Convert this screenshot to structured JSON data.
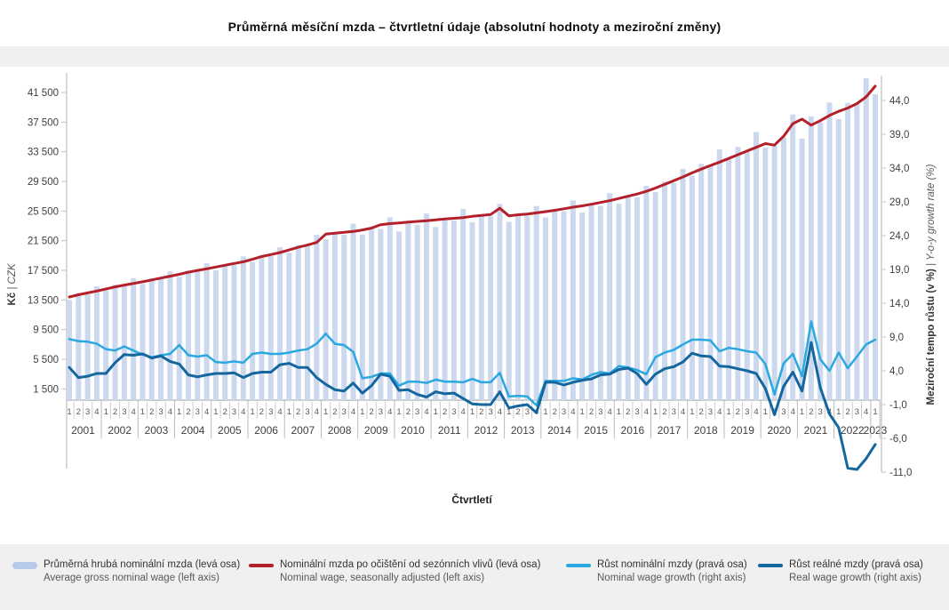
{
  "title": "Průměrná měsíční mzda – čtvrtletní údaje (absolutní hodnoty a meziroční změny)",
  "colors": {
    "bar": "#cbd8ee",
    "seasonally_adjusted_line": "#b4202a",
    "nominal_growth_line": "#29a9e0",
    "real_growth_line": "#14669f",
    "band_background": "#f0f0f0",
    "axis_line": "#b3b3b3",
    "tick_text": "#404040",
    "quarter_text": "#595959"
  },
  "chart_data": {
    "type": "bar+line",
    "title": "Průměrná měsíční mzda – čtvrtletní údaje (absolutní hodnoty a meziroční změny)",
    "x_axis": {
      "title": "Čtvrtletí",
      "years": [
        {
          "label": "2001",
          "quarters": [
            "1",
            "2",
            "3",
            "4"
          ]
        },
        {
          "label": "2002",
          "quarters": [
            "1",
            "2",
            "3",
            "4"
          ]
        },
        {
          "label": "2003",
          "quarters": [
            "1",
            "2",
            "3",
            "4"
          ]
        },
        {
          "label": "2004",
          "quarters": [
            "1",
            "2",
            "3",
            "4"
          ]
        },
        {
          "label": "2005",
          "quarters": [
            "1",
            "2",
            "3",
            "4"
          ]
        },
        {
          "label": "2006",
          "quarters": [
            "1",
            "2",
            "3",
            "4"
          ]
        },
        {
          "label": "2007",
          "quarters": [
            "1",
            "2",
            "3",
            "4"
          ]
        },
        {
          "label": "2008",
          "quarters": [
            "1",
            "2",
            "3",
            "4"
          ]
        },
        {
          "label": "2009",
          "quarters": [
            "1",
            "2",
            "3",
            "4"
          ]
        },
        {
          "label": "2010",
          "quarters": [
            "1",
            "2",
            "3",
            "4"
          ]
        },
        {
          "label": "2011",
          "quarters": [
            "1",
            "2",
            "3",
            "4"
          ]
        },
        {
          "label": "2012",
          "quarters": [
            "1",
            "2",
            "3",
            "4"
          ]
        },
        {
          "label": "2013",
          "quarters": [
            "1",
            "2",
            "3",
            "4"
          ]
        },
        {
          "label": "2014",
          "quarters": [
            "1",
            "2",
            "3",
            "4"
          ]
        },
        {
          "label": "2015",
          "quarters": [
            "1",
            "2",
            "3",
            "4"
          ]
        },
        {
          "label": "2016",
          "quarters": [
            "1",
            "2",
            "3",
            "4"
          ]
        },
        {
          "label": "2017",
          "quarters": [
            "1",
            "2",
            "3",
            "4"
          ]
        },
        {
          "label": "2018",
          "quarters": [
            "1",
            "2",
            "3",
            "4"
          ]
        },
        {
          "label": "2019",
          "quarters": [
            "1",
            "2",
            "3",
            "4"
          ]
        },
        {
          "label": "2020",
          "quarters": [
            "1",
            "2",
            "3",
            "4"
          ]
        },
        {
          "label": "2021",
          "quarters": [
            "1",
            "2",
            "3",
            "4"
          ]
        },
        {
          "label": "2022",
          "quarters": [
            "1",
            "2",
            "3",
            "4"
          ]
        },
        {
          "label": "2023",
          "quarters": [
            "1"
          ]
        }
      ]
    },
    "left_axis": {
      "title_bold": "Kč ",
      "title_italic": "| CZK",
      "min": 0,
      "max": 43500,
      "ticks": [
        {
          "v": 41500,
          "label": "41 500"
        },
        {
          "v": 37500,
          "label": "37 500"
        },
        {
          "v": 33500,
          "label": "33 500"
        },
        {
          "v": 29500,
          "label": "29 500"
        },
        {
          "v": 25500,
          "label": "25 500"
        },
        {
          "v": 21500,
          "label": "21 500"
        },
        {
          "v": 17500,
          "label": "17 500"
        },
        {
          "v": 13500,
          "label": "13 500"
        },
        {
          "v": 9500,
          "label": "9 500"
        },
        {
          "v": 5500,
          "label": "5 500"
        },
        {
          "v": 1500,
          "label": "1 500"
        }
      ]
    },
    "right_axis": {
      "title_bold": "Meziroční tempo růstu (v %) ",
      "title_italic": "| Y-o-y growth rate (%)",
      "min": -11,
      "max": 44,
      "ticks": [
        {
          "v": 44,
          "label": "44,0"
        },
        {
          "v": 39,
          "label": "39,0"
        },
        {
          "v": 34,
          "label": "34,0"
        },
        {
          "v": 29,
          "label": "29,0"
        },
        {
          "v": 24,
          "label": "24,0"
        },
        {
          "v": 19,
          "label": "19,0"
        },
        {
          "v": 14,
          "label": "14,0"
        },
        {
          "v": 9,
          "label": "9,0"
        },
        {
          "v": 4,
          "label": "4,0"
        },
        {
          "v": -1,
          "label": "-1,0"
        },
        {
          "v": -6,
          "label": "-6,0"
        },
        {
          "v": -11,
          "label": "-11,0"
        }
      ]
    },
    "series": [
      {
        "name": "Průměrná hrubá nominální mzda (levá osa)",
        "name_en": "Average gross nominal wage (left axis)",
        "type": "bar",
        "axis": "left",
        "color": "#cbd8ee",
        "values": [
          13490,
          14440,
          14245,
          15335,
          14750,
          15560,
          15355,
          16430,
          15660,
          16390,
          16310,
          17370,
          16620,
          17470,
          17310,
          18470,
          17480,
          18320,
          18210,
          19370,
          18620,
          19550,
          19400,
          20620,
          19870,
          20920,
          20760,
          22280,
          21700,
          22590,
          22290,
          23790,
          22330,
          23310,
          23090,
          24650,
          22740,
          23870,
          23650,
          25200,
          23350,
          24450,
          24230,
          25790,
          24000,
          25010,
          24790,
          26470,
          24040,
          25080,
          24840,
          26180,
          24640,
          25700,
          25470,
          26940,
          25300,
          26450,
          26200,
          27920,
          26480,
          27640,
          27330,
          28900,
          28070,
          29480,
          29280,
          31190,
          30270,
          31870,
          31530,
          33800,
          32470,
          34160,
          33700,
          36170,
          34080,
          34270,
          35400,
          38530,
          35290,
          38280,
          37500,
          40140,
          37930,
          40090,
          39890,
          43410,
          41270
        ]
      },
      {
        "name": "Nominální mzda po očištění od sezónních vlivů (levá osa)",
        "name_en": "Nominal wage, seasonally adjusted (left axis)",
        "type": "line",
        "axis": "left",
        "color": "#b4202a",
        "width": 3,
        "values": [
          13900,
          14200,
          14450,
          14700,
          14980,
          15260,
          15500,
          15720,
          15950,
          16200,
          16450,
          16700,
          16960,
          17250,
          17480,
          17700,
          17940,
          18180,
          18420,
          18650,
          18980,
          19360,
          19620,
          19900,
          20250,
          20600,
          20900,
          21250,
          22380,
          22500,
          22620,
          22740,
          22950,
          23200,
          23650,
          23800,
          23900,
          24000,
          24100,
          24200,
          24320,
          24420,
          24520,
          24620,
          24780,
          24900,
          25020,
          25880,
          24850,
          25000,
          25100,
          25250,
          25420,
          25600,
          25800,
          26020,
          26200,
          26420,
          26650,
          26900,
          27200,
          27500,
          27800,
          28150,
          28600,
          29100,
          29600,
          30100,
          30650,
          31150,
          31650,
          32100,
          32600,
          33100,
          33600,
          34100,
          34600,
          34400,
          35600,
          37300,
          37900,
          37100,
          37700,
          38400,
          38950,
          39400,
          40000,
          40900,
          42350
        ]
      },
      {
        "name": "Růst nominální mzdy (pravá osa)",
        "name_en": "Nominal wage growth (right axis)",
        "type": "line",
        "axis": "right",
        "color": "#29a9e0",
        "width": 2.5,
        "values": [
          8.7,
          8.4,
          8.3,
          8.0,
          7.2,
          7.0,
          7.6,
          7.0,
          6.4,
          6.0,
          6.3,
          6.5,
          7.8,
          6.3,
          6.1,
          6.3,
          5.3,
          5.2,
          5.4,
          5.2,
          6.5,
          6.7,
          6.5,
          6.5,
          6.7,
          7.0,
          7.2,
          8.0,
          9.5,
          8.0,
          7.8,
          6.8,
          2.9,
          3.1,
          3.6,
          3.6,
          1.8,
          2.4,
          2.4,
          2.2,
          2.7,
          2.4,
          2.4,
          2.3,
          2.8,
          2.3,
          2.3,
          3.7,
          0.2,
          0.3,
          0.2,
          -1.1,
          2.5,
          2.5,
          2.5,
          2.9,
          2.7,
          3.4,
          3.8,
          3.6,
          4.7,
          4.5,
          4.1,
          3.5,
          6.0,
          6.7,
          7.1,
          7.9,
          8.6,
          8.6,
          8.5,
          6.9,
          7.4,
          7.2,
          6.9,
          6.7,
          5.0,
          0.5,
          5.1,
          6.5,
          3.2,
          11.3,
          5.7,
          4.0,
          6.7,
          4.4,
          6.1,
          7.9,
          8.6
        ]
      },
      {
        "name": "Růst reálné mzdy (pravá osa)",
        "name_en": "Real wage growth (right axis)",
        "type": "line",
        "axis": "right",
        "color": "#14669f",
        "width": 3,
        "values": [
          4.5,
          3.0,
          3.2,
          3.6,
          3.6,
          5.2,
          6.4,
          6.3,
          6.5,
          5.9,
          6.2,
          5.4,
          5.0,
          3.4,
          3.1,
          3.4,
          3.6,
          3.6,
          3.7,
          3.0,
          3.6,
          3.8,
          3.8,
          4.9,
          5.1,
          4.5,
          4.5,
          3.0,
          2.0,
          1.2,
          1.0,
          2.2,
          0.7,
          1.8,
          3.5,
          3.2,
          1.1,
          1.2,
          0.5,
          0.1,
          0.9,
          0.6,
          0.7,
          -0.1,
          -0.9,
          -1.0,
          -1.0,
          0.9,
          -1.5,
          -1.2,
          -1.0,
          -2.2,
          2.3,
          2.3,
          1.9,
          2.3,
          2.6,
          2.8,
          3.4,
          3.5,
          4.2,
          4.4,
          3.6,
          2.0,
          3.5,
          4.3,
          4.6,
          5.3,
          6.6,
          6.2,
          6.1,
          4.7,
          4.6,
          4.3,
          4.0,
          3.6,
          1.4,
          -2.5,
          1.7,
          3.8,
          1.0,
          8.2,
          1.5,
          -2.4,
          -4.4,
          -10.4,
          -10.6,
          -9.0,
          -6.9
        ]
      }
    ]
  },
  "legend": {
    "items": [
      {
        "cz": "Průměrná hrubá nominální mzda (levá osa)",
        "en": "Average gross nominal wage (left axis)",
        "color": "#b7c9e8",
        "kind": "bar"
      },
      {
        "cz": "Nominální mzda po očištění od sezónních vlivů (levá osa)",
        "en": "Nominal wage, seasonally adjusted (left axis)",
        "color": "#b4202a",
        "kind": "line"
      },
      {
        "cz": "Růst nominální mzdy (pravá osa)",
        "en": "Nominal wage growth (right axis)",
        "color": "#29a9e0",
        "kind": "line"
      },
      {
        "cz": "Růst reálné mzdy (pravá osa)",
        "en": "Real wage growth (right axis)",
        "color": "#14669f",
        "kind": "line"
      }
    ]
  }
}
